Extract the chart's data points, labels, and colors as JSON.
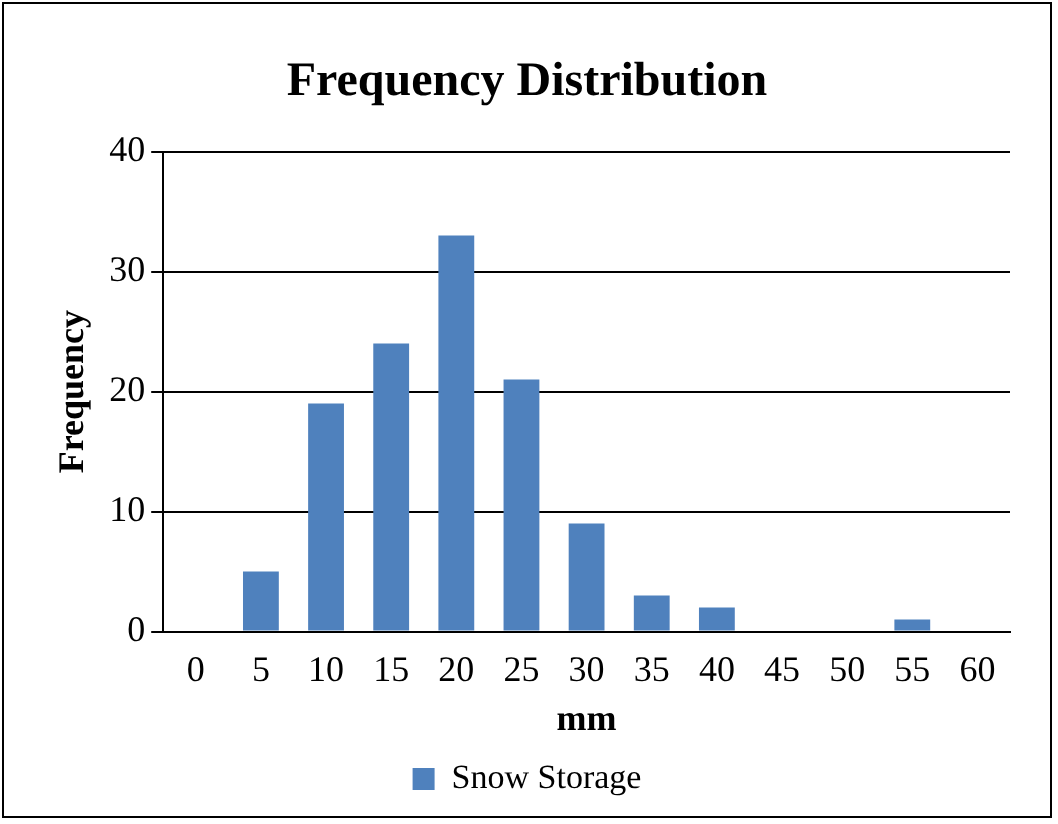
{
  "chart_data": {
    "type": "bar",
    "title": "Frequency Distribution",
    "xlabel": "mm",
    "ylabel": "Frequency",
    "categories": [
      "0",
      "5",
      "10",
      "15",
      "20",
      "25",
      "30",
      "35",
      "40",
      "45",
      "50",
      "55",
      "60"
    ],
    "series": [
      {
        "name": "Snow Storage",
        "color": "#4f81bd",
        "values": [
          0,
          5,
          19,
          24,
          33,
          21,
          9,
          3,
          2,
          0,
          0,
          1,
          0
        ]
      }
    ],
    "ylim": [
      0,
      40
    ],
    "yticks": [
      0,
      10,
      20,
      30,
      40
    ],
    "grid": "y",
    "legend": "bottom"
  }
}
